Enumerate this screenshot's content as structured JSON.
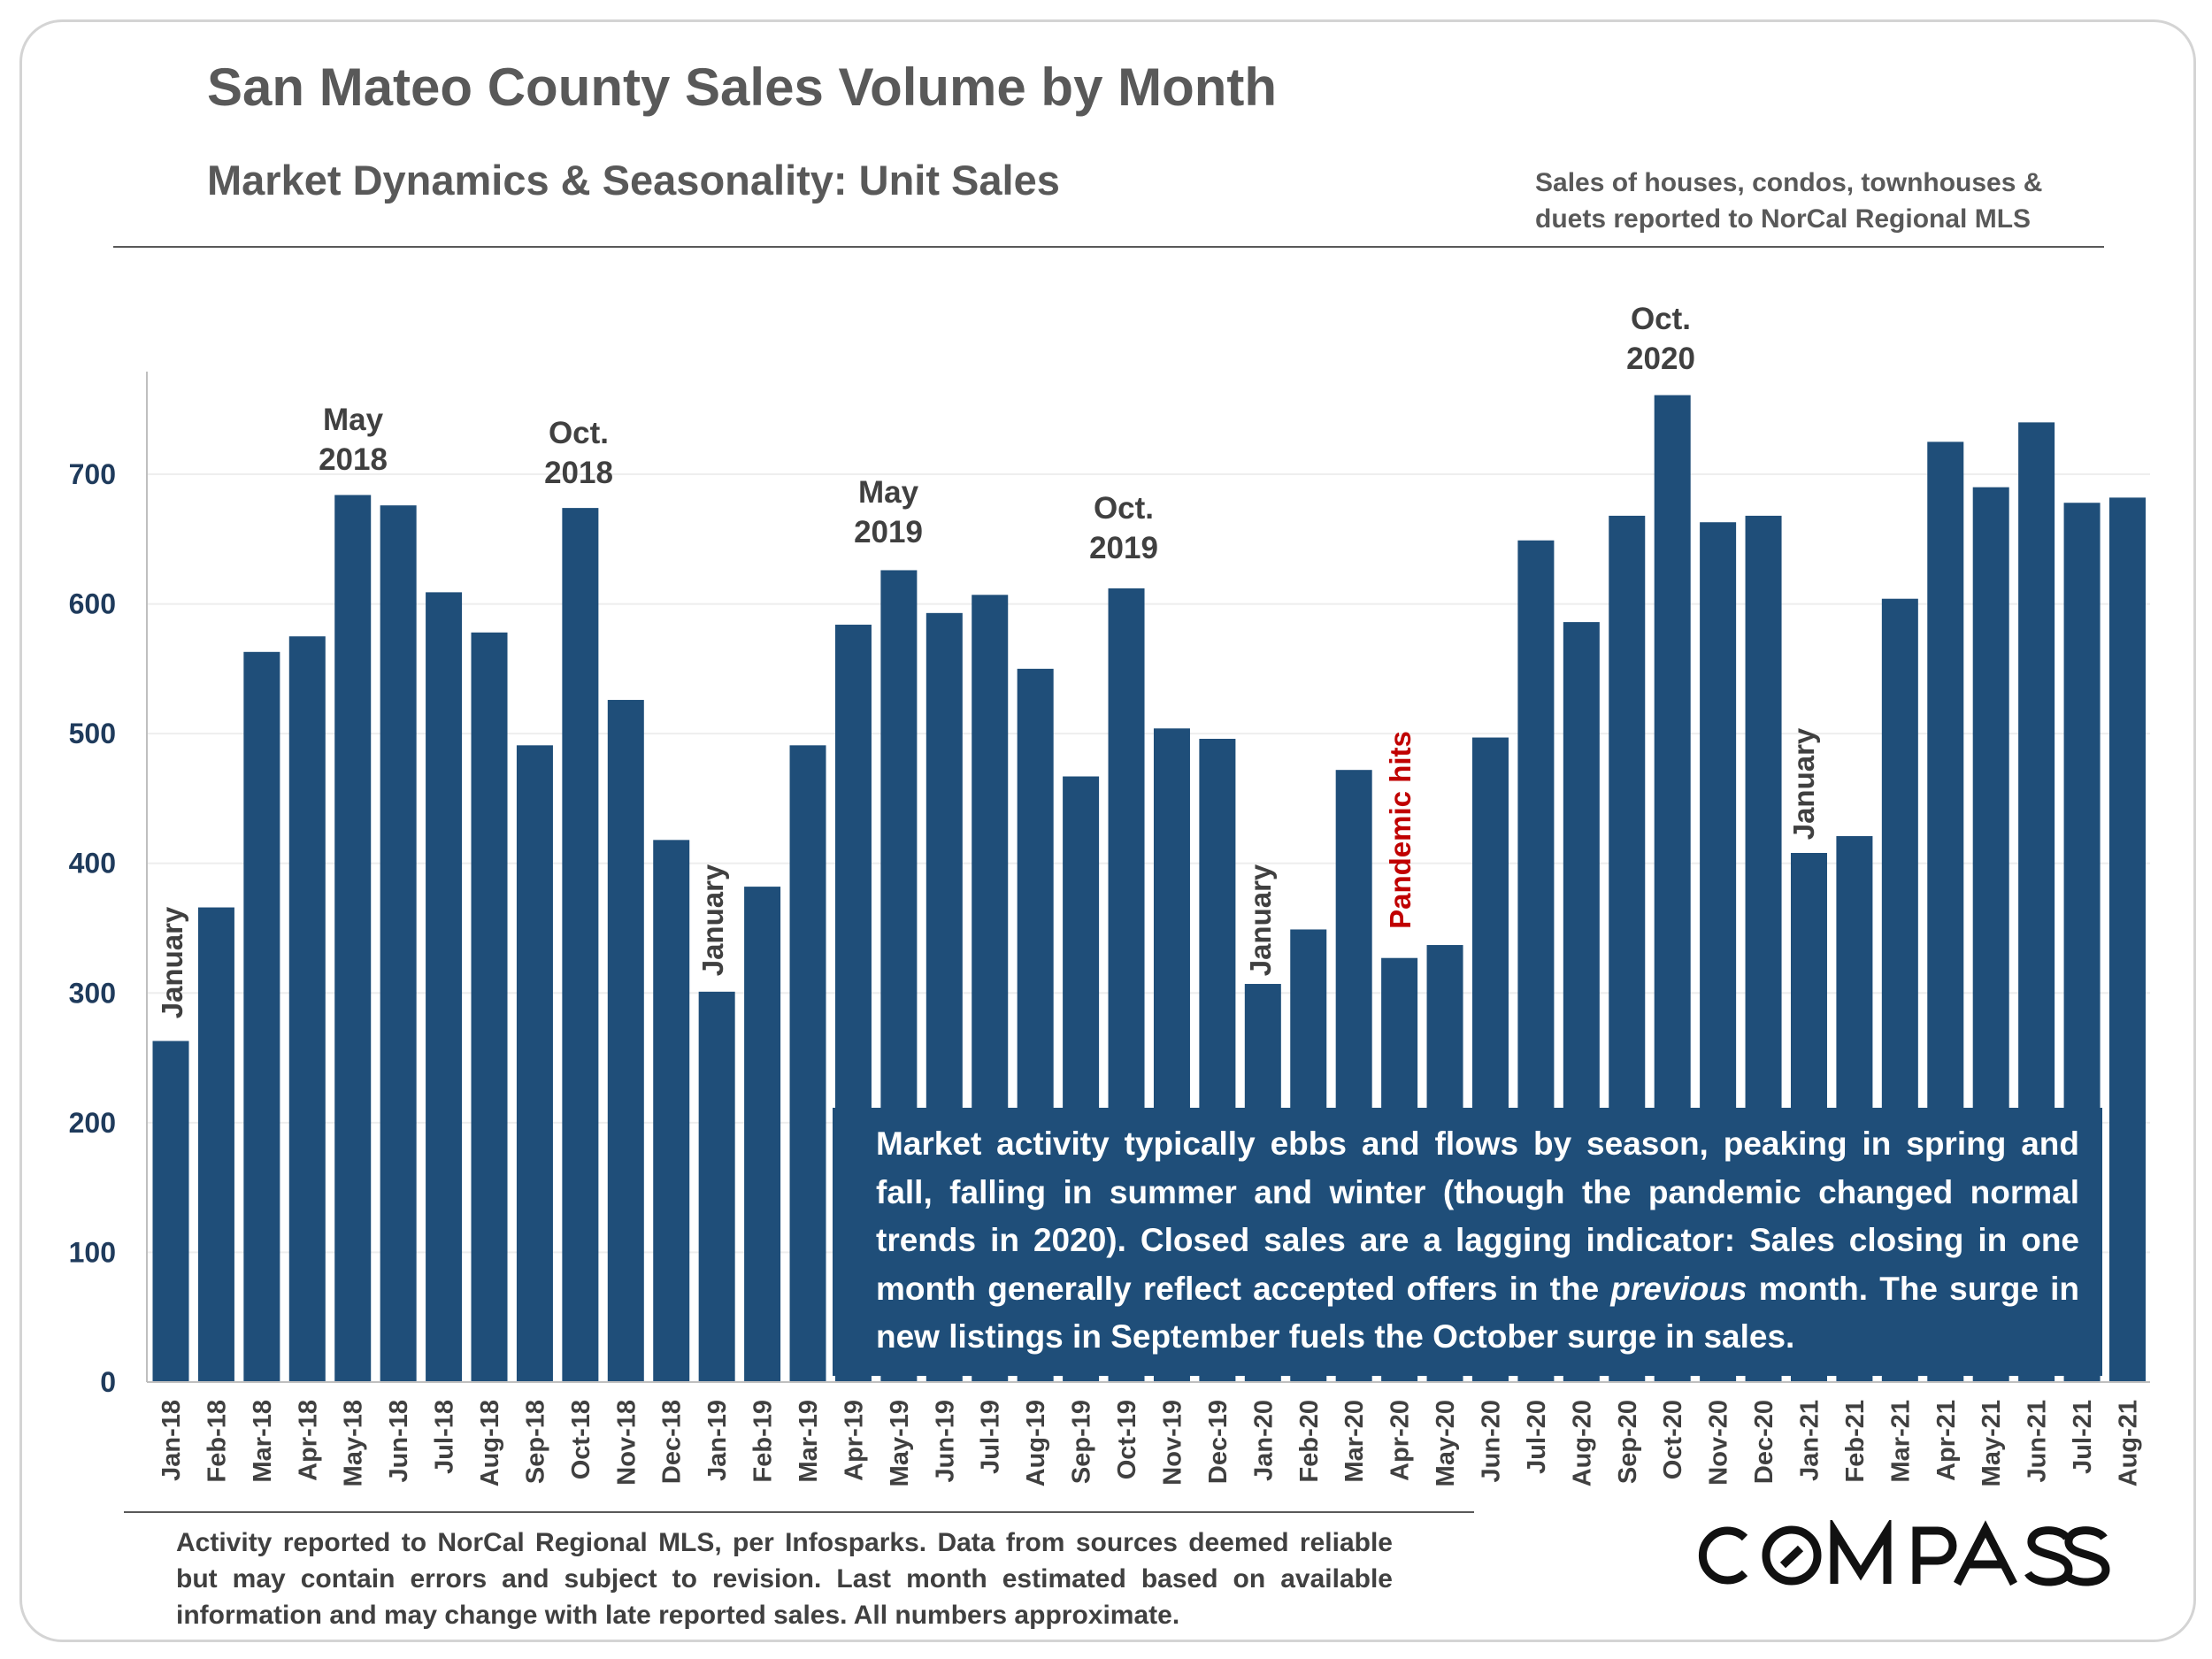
{
  "header": {
    "title": "San Mateo County Sales Volume by Month",
    "subtitle": "Market Dynamics & Seasonality: Unit Sales",
    "note": "Sales of houses, condos, townhouses & duets reported to NorCal Regional MLS"
  },
  "chart_data": {
    "type": "bar",
    "title": "San Mateo County Sales Volume by Month",
    "xlabel": "",
    "ylabel": "",
    "ylim": [
      0,
      780
    ],
    "yticks": [
      0,
      100,
      200,
      300,
      400,
      500,
      600,
      700
    ],
    "grid": true,
    "bar_color": "#1f4e79",
    "categories": [
      "Jan-18",
      "Feb-18",
      "Mar-18",
      "Apr-18",
      "May-18",
      "Jun-18",
      "Jul-18",
      "Aug-18",
      "Sep-18",
      "Oct-18",
      "Nov-18",
      "Dec-18",
      "Jan-19",
      "Feb-19",
      "Mar-19",
      "Apr-19",
      "May-19",
      "Jun-19",
      "Jul-19",
      "Aug-19",
      "Sep-19",
      "Oct-19",
      "Nov-19",
      "Dec-19",
      "Jan-20",
      "Feb-20",
      "Mar-20",
      "Apr-20",
      "May-20",
      "Jun-20",
      "Jul-20",
      "Aug-20",
      "Sep-20",
      "Oct-20",
      "Nov-20",
      "Dec-20",
      "Jan-21",
      "Feb-21",
      "Mar-21",
      "Apr-21",
      "May-21",
      "Jun-21",
      "Jul-21",
      "Aug-21"
    ],
    "values": [
      263,
      366,
      563,
      575,
      684,
      676,
      609,
      578,
      491,
      674,
      526,
      418,
      301,
      382,
      491,
      584,
      626,
      593,
      607,
      550,
      467,
      612,
      504,
      496,
      307,
      349,
      472,
      327,
      337,
      497,
      649,
      586,
      668,
      761,
      663,
      668,
      408,
      421,
      604,
      725,
      690,
      740,
      678,
      682
    ],
    "annotations": {
      "may2018": [
        "May",
        "2018"
      ],
      "oct2018": [
        "Oct.",
        "2018"
      ],
      "may2019": [
        "May",
        "2019"
      ],
      "oct2019": [
        "Oct.",
        "2019"
      ],
      "oct2020": [
        "Oct.",
        "2020"
      ],
      "january": "January",
      "pandemic": "Pandemic hits",
      "pandemic_color": "#c00000"
    },
    "callout": "Market activity typically ebbs and flows by season, peaking in spring and fall, falling in summer and winter (though the pandemic changed normal trends in 2020). Closed sales are a lagging indicator: Sales closing in one month generally reflect accepted offers in the previous month. The surge in new listings in September fuels the October surge in sales.",
    "callout_parts": [
      "Market activity typically ebbs and flows by season, peaking in spring and fall, falling in summer and winter (though the pandemic changed normal trends in 2020). Closed sales are a lagging indicator: Sales closing in one month generally reflect accepted offers in the ",
      "previous",
      " month. The surge in new listings in September fuels the October surge in sales."
    ]
  },
  "footer": {
    "disclaimer": "Activity reported to NorCal Regional MLS, per Infosparks. Data from sources deemed reliable but may contain errors and subject to revision. Last month estimated based on available information and may change with late reported sales. All numbers approximate.",
    "logo": "COMPASS"
  }
}
